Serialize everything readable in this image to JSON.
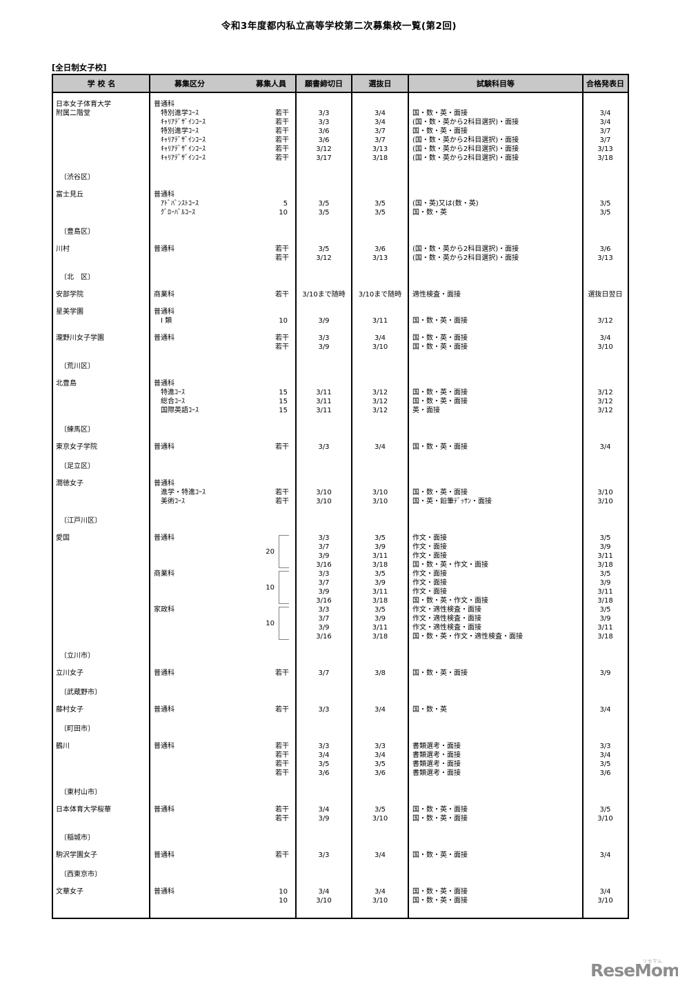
{
  "title": "令和3年度都内私立高等学校第二次募集校一覧(第2回)",
  "section_label": "[全日制女子校]",
  "colors": {
    "header_bg": "#c8c8c8",
    "border": "#000000",
    "logo_gray": "#8d8d8d"
  },
  "header": {
    "school": "学 校 名",
    "category": "募集区分",
    "capacity": "募集人員",
    "deadline": "願書締切日",
    "selection": "選抜日",
    "subjects": "試験科目等",
    "announcement": "合格発表日"
  },
  "blocks": [
    {
      "type": "school",
      "name_lines": [
        "日本女子体育大学",
        "附属二階堂"
      ],
      "rows": [
        {
          "course": "普通科",
          "indent": false
        },
        {
          "course": "特別進学ｺｰｽ",
          "indent": true,
          "cap": "若干",
          "deadline": "3/3",
          "selection": "3/4",
          "subjects": "国・数・英・面接",
          "announce": "3/4"
        },
        {
          "course": "ｷｬﾘｱﾃﾞｻﾞｲﾝｺｰｽ",
          "indent": true,
          "cap": "若干",
          "deadline": "3/3",
          "selection": "3/4",
          "subjects": "(国・数・英から2科目選択)・面接",
          "announce": "3/4"
        },
        {
          "course": "特別進学ｺｰｽ",
          "indent": true,
          "cap": "若干",
          "deadline": "3/6",
          "selection": "3/7",
          "subjects": "国・数・英・面接",
          "announce": "3/7"
        },
        {
          "course": "ｷｬﾘｱﾃﾞｻﾞｲﾝｺｰｽ",
          "indent": true,
          "cap": "若干",
          "deadline": "3/6",
          "selection": "3/7",
          "subjects": "(国・数・英から2科目選択)・面接",
          "announce": "3/7"
        },
        {
          "course": "ｷｬﾘｱﾃﾞｻﾞｲﾝｺｰｽ",
          "indent": true,
          "cap": "若干",
          "deadline": "3/12",
          "selection": "3/13",
          "subjects": "(国・数・英から2科目選択)・面接",
          "announce": "3/13"
        },
        {
          "course": "ｷｬﾘｱﾃﾞｻﾞｲﾝｺｰｽ",
          "indent": true,
          "cap": "若干",
          "deadline": "3/17",
          "selection": "3/18",
          "subjects": "(国・数・英から2科目選択)・面接",
          "announce": "3/18"
        }
      ]
    },
    {
      "type": "region",
      "label": "〔渋谷区〕"
    },
    {
      "type": "school",
      "name_lines": [
        "富士見丘"
      ],
      "rows": [
        {
          "course": "普通科",
          "indent": false
        },
        {
          "course": "ｱﾄﾞﾊﾞﾝｽﾄｺｰｽ",
          "indent": true,
          "cap": "5",
          "deadline": "3/5",
          "selection": "3/5",
          "subjects": "(国・英)又は(数・英)",
          "announce": "3/5"
        },
        {
          "course": "ｸﾞﾛｰﾊﾞﾙｺｰｽ",
          "indent": true,
          "cap": "10",
          "deadline": "3/5",
          "selection": "3/5",
          "subjects": "国・数・英",
          "announce": "3/5"
        }
      ]
    },
    {
      "type": "region",
      "label": "〔豊島区〕"
    },
    {
      "type": "school",
      "name_lines": [
        "川村"
      ],
      "rows": [
        {
          "course": "普通科",
          "indent": false,
          "cap": "若干",
          "deadline": "3/5",
          "selection": "3/6",
          "subjects": "(国・数・英から2科目選択)・面接",
          "announce": "3/6"
        },
        {
          "cap": "若干",
          "deadline": "3/12",
          "selection": "3/13",
          "subjects": "(国・数・英から2科目選択)・面接",
          "announce": "3/13"
        }
      ]
    },
    {
      "type": "region",
      "label": "〔北　区〕"
    },
    {
      "type": "school",
      "name_lines": [
        "安部学院"
      ],
      "rows": [
        {
          "course": "商業科",
          "indent": false,
          "cap": "若干",
          "deadline": "3/10まで随時",
          "selection": "3/10まで随時",
          "subjects": "適性検査・面接",
          "announce": "選抜日翌日"
        }
      ]
    },
    {
      "type": "school",
      "name_lines": [
        "星美学園"
      ],
      "rows": [
        {
          "course": "普通科",
          "indent": false
        },
        {
          "course": "Ⅰ 類",
          "indent": true,
          "cap": "10",
          "deadline": "3/9",
          "selection": "3/11",
          "subjects": "国・数・英・面接",
          "announce": "3/12"
        }
      ]
    },
    {
      "type": "school",
      "name_lines": [
        "瀧野川女子学園"
      ],
      "rows": [
        {
          "course": "普通科",
          "indent": false,
          "cap": "若干",
          "deadline": "3/3",
          "selection": "3/4",
          "subjects": "国・数・英・面接",
          "announce": "3/4"
        },
        {
          "cap": "若干",
          "deadline": "3/9",
          "selection": "3/10",
          "subjects": "国・数・英・面接",
          "announce": "3/10"
        }
      ]
    },
    {
      "type": "region",
      "label": "〔荒川区〕"
    },
    {
      "type": "school",
      "name_lines": [
        "北豊島"
      ],
      "rows": [
        {
          "course": "普通科",
          "indent": false
        },
        {
          "course": "特進ｺｰｽ",
          "indent": true,
          "cap": "15",
          "deadline": "3/11",
          "selection": "3/12",
          "subjects": "国・数・英・面接",
          "announce": "3/12"
        },
        {
          "course": "総合ｺｰｽ",
          "indent": true,
          "cap": "15",
          "deadline": "3/11",
          "selection": "3/12",
          "subjects": "国・数・英・面接",
          "announce": "3/12"
        },
        {
          "course": "国際英語ｺｰｽ",
          "indent": true,
          "cap": "15",
          "deadline": "3/11",
          "selection": "3/12",
          "subjects": "英・面接",
          "announce": "3/12"
        }
      ]
    },
    {
      "type": "region",
      "label": "〔練馬区〕"
    },
    {
      "type": "school",
      "name_lines": [
        "東京女子学院"
      ],
      "rows": [
        {
          "course": "普通科",
          "indent": false,
          "cap": "若干",
          "deadline": "3/3",
          "selection": "3/4",
          "subjects": "国・数・英・面接",
          "announce": "3/4"
        }
      ]
    },
    {
      "type": "region",
      "label": "〔足立区〕"
    },
    {
      "type": "school",
      "name_lines": [
        "潤徳女子"
      ],
      "rows": [
        {
          "course": "普通科",
          "indent": false
        },
        {
          "course": "進学・特進ｺｰｽ",
          "indent": true,
          "cap": "若干",
          "deadline": "3/10",
          "selection": "3/10",
          "subjects": "国・数・英・面接",
          "announce": "3/10"
        },
        {
          "course": "美術ｺｰｽ",
          "indent": true,
          "cap": "若干",
          "deadline": "3/10",
          "selection": "3/10",
          "subjects": "国・英・鉛筆ﾃﾞｯｻﾝ・面接",
          "announce": "3/10"
        }
      ]
    },
    {
      "type": "region",
      "label": "〔江戸川区〕"
    },
    {
      "type": "school",
      "name_lines": [
        "愛国"
      ],
      "brackets": [
        {
          "row": 0,
          "span": 4,
          "cap": "20"
        },
        {
          "row": 4,
          "span": 4,
          "cap": "10"
        },
        {
          "row": 8,
          "span": 4,
          "cap": "10"
        }
      ],
      "rows": [
        {
          "course": "普通科",
          "indent": false,
          "deadline": "3/3",
          "selection": "3/5",
          "subjects": "作文・面接",
          "announce": "3/5"
        },
        {
          "deadline": "3/7",
          "selection": "3/9",
          "subjects": "作文・面接",
          "announce": "3/9"
        },
        {
          "deadline": "3/9",
          "selection": "3/11",
          "subjects": "作文・面接",
          "announce": "3/11"
        },
        {
          "deadline": "3/16",
          "selection": "3/18",
          "subjects": "国・数・英・作文・面接",
          "announce": "3/18"
        },
        {
          "course": "商業科",
          "indent": false,
          "deadline": "3/3",
          "selection": "3/5",
          "subjects": "作文・面接",
          "announce": "3/5"
        },
        {
          "deadline": "3/7",
          "selection": "3/9",
          "subjects": "作文・面接",
          "announce": "3/9"
        },
        {
          "deadline": "3/9",
          "selection": "3/11",
          "subjects": "作文・面接",
          "announce": "3/11"
        },
        {
          "deadline": "3/16",
          "selection": "3/18",
          "subjects": "国・数・英・作文・面接",
          "announce": "3/18"
        },
        {
          "course": "家政科",
          "indent": false,
          "deadline": "3/3",
          "selection": "3/5",
          "subjects": "作文・適性検査・面接",
          "announce": "3/5"
        },
        {
          "deadline": "3/7",
          "selection": "3/9",
          "subjects": "作文・適性検査・面接",
          "announce": "3/9"
        },
        {
          "deadline": "3/9",
          "selection": "3/11",
          "subjects": "作文・適性検査・面接",
          "announce": "3/11"
        },
        {
          "deadline": "3/16",
          "selection": "3/18",
          "subjects": "国・数・英・作文・適性検査・面接",
          "announce": "3/18"
        }
      ]
    },
    {
      "type": "region",
      "label": "〔立川市〕"
    },
    {
      "type": "school",
      "name_lines": [
        "立川女子"
      ],
      "rows": [
        {
          "course": "普通科",
          "indent": false,
          "cap": "若干",
          "deadline": "3/7",
          "selection": "3/8",
          "subjects": "国・数・英・面接",
          "announce": "3/9"
        }
      ]
    },
    {
      "type": "region",
      "label": "〔武蔵野市〕"
    },
    {
      "type": "school",
      "name_lines": [
        "藤村女子"
      ],
      "rows": [
        {
          "course": "普通科",
          "indent": false,
          "cap": "若干",
          "deadline": "3/3",
          "selection": "3/4",
          "subjects": "国・数・英",
          "announce": "3/4"
        }
      ]
    },
    {
      "type": "region",
      "label": "〔町田市〕"
    },
    {
      "type": "school",
      "name_lines": [
        "鶴川"
      ],
      "rows": [
        {
          "course": "普通科",
          "indent": false,
          "cap": "若干",
          "deadline": "3/3",
          "selection": "3/3",
          "subjects": "書類選考・面接",
          "announce": "3/3"
        },
        {
          "cap": "若干",
          "deadline": "3/4",
          "selection": "3/4",
          "subjects": "書類選考・面接",
          "announce": "3/4"
        },
        {
          "cap": "若干",
          "deadline": "3/5",
          "selection": "3/5",
          "subjects": "書類選考・面接",
          "announce": "3/5"
        },
        {
          "cap": "若干",
          "deadline": "3/6",
          "selection": "3/6",
          "subjects": "書類選考・面接",
          "announce": "3/6"
        }
      ]
    },
    {
      "type": "region",
      "label": "〔東村山市〕"
    },
    {
      "type": "school",
      "name_lines": [
        "日本体育大学桜華"
      ],
      "rows": [
        {
          "course": "普通科",
          "indent": false,
          "cap": "若干",
          "deadline": "3/4",
          "selection": "3/5",
          "subjects": "国・数・英・面接",
          "announce": "3/5"
        },
        {
          "cap": "若干",
          "deadline": "3/9",
          "selection": "3/10",
          "subjects": "国・数・英・面接",
          "announce": "3/10"
        }
      ]
    },
    {
      "type": "region",
      "label": "〔稲城市〕"
    },
    {
      "type": "school",
      "name_lines": [
        "駒沢学園女子"
      ],
      "rows": [
        {
          "course": "普通科",
          "indent": false,
          "cap": "若干",
          "deadline": "3/3",
          "selection": "3/4",
          "subjects": "国・数・英・面接",
          "announce": "3/4"
        }
      ]
    },
    {
      "type": "region",
      "label": "〔西東京市〕"
    },
    {
      "type": "school",
      "name_lines": [
        "文華女子"
      ],
      "rows": [
        {
          "course": "普通科",
          "indent": false,
          "cap": "10",
          "deadline": "3/4",
          "selection": "3/4",
          "subjects": "国・数・英・面接",
          "announce": "3/4"
        },
        {
          "cap": "10",
          "deadline": "3/10",
          "selection": "3/10",
          "subjects": "国・数・英・面接",
          "announce": "3/10"
        }
      ]
    }
  ],
  "logo": {
    "text": "ReseMom.",
    "ruby": "リセマム"
  }
}
